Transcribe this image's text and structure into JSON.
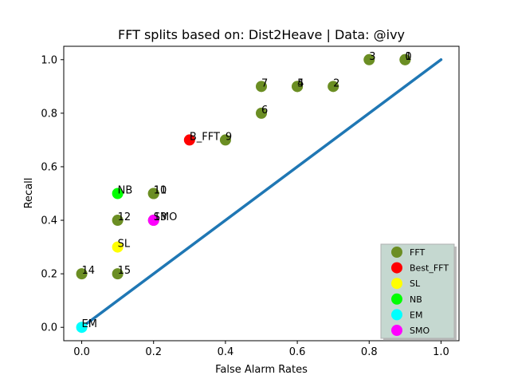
{
  "chart_data": {
    "type": "scatter",
    "title": "FFT splits based on: Dist2Heave  |  Data: @ivy",
    "xlabel": "False Alarm Rates",
    "ylabel": "Recall",
    "xlim": [
      -0.05,
      1.05
    ],
    "ylim": [
      -0.05,
      1.05
    ],
    "xticks": [
      "0.0",
      "0.2",
      "0.4",
      "0.6",
      "0.8",
      "1.0"
    ],
    "yticks": [
      "0.0",
      "0.2",
      "0.4",
      "0.6",
      "0.8",
      "1.0"
    ],
    "grid": false,
    "legend_position": "lower-right",
    "diagonal_line": {
      "x": [
        0,
        1
      ],
      "y": [
        0,
        1
      ],
      "color": "#1f77b4"
    },
    "series": [
      {
        "name": "FFT",
        "color": "#6b8e23",
        "points": [
          {
            "label": "0",
            "x": 0.9,
            "y": 1.0
          },
          {
            "label": "1",
            "x": 0.9,
            "y": 1.0
          },
          {
            "label": "3",
            "x": 0.8,
            "y": 1.0
          },
          {
            "label": "4",
            "x": 0.6,
            "y": 0.9
          },
          {
            "label": "5",
            "x": 0.6,
            "y": 0.9
          },
          {
            "label": "2",
            "x": 0.7,
            "y": 0.9
          },
          {
            "label": "7",
            "x": 0.5,
            "y": 0.9
          },
          {
            "label": "6",
            "x": 0.5,
            "y": 0.8
          },
          {
            "label": "9",
            "x": 0.4,
            "y": 0.7
          },
          {
            "label": "10",
            "x": 0.2,
            "y": 0.5
          },
          {
            "label": "11",
            "x": 0.2,
            "y": 0.5
          },
          {
            "label": "12",
            "x": 0.1,
            "y": 0.4
          },
          {
            "label": "13",
            "x": 0.2,
            "y": 0.4
          },
          {
            "label": "14",
            "x": 0.0,
            "y": 0.2
          },
          {
            "label": "15",
            "x": 0.1,
            "y": 0.2
          }
        ]
      },
      {
        "name": "Best_FFT",
        "color": "#ff0000",
        "points": [
          {
            "label": "B_FFT",
            "x": 0.3,
            "y": 0.7
          }
        ]
      },
      {
        "name": "SL",
        "color": "#ffff00",
        "points": [
          {
            "label": "SL",
            "x": 0.1,
            "y": 0.3
          }
        ]
      },
      {
        "name": "NB",
        "color": "#00ff00",
        "points": [
          {
            "label": "NB",
            "x": 0.1,
            "y": 0.5
          }
        ]
      },
      {
        "name": "EM",
        "color": "#00ffff",
        "points": [
          {
            "label": "EM",
            "x": 0.0,
            "y": 0.0
          }
        ]
      },
      {
        "name": "SMO",
        "color": "#ff00ff",
        "points": [
          {
            "label": "SMO",
            "x": 0.2,
            "y": 0.4
          }
        ]
      }
    ]
  }
}
